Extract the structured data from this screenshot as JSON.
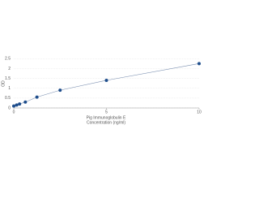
{
  "chart_data": {
    "type": "scatter",
    "x_label": "Pig Immunoglobulin E",
    "x_label_2": "Concentration (ng/ml)",
    "y_label": "OD",
    "x": [
      0,
      0.156,
      0.312,
      0.625,
      1.25,
      2.5,
      5,
      10
    ],
    "series": [
      {
        "name": "OD",
        "color": "#1f4e8c",
        "values": [
          0.1,
          0.15,
          0.2,
          0.3,
          0.55,
          0.9,
          1.4,
          2.25
        ]
      }
    ],
    "line_color": "#7a8fb0",
    "xlim": [
      0,
      10
    ],
    "xticks": [
      0,
      5,
      10
    ],
    "ylim": [
      0,
      2.8
    ],
    "yticks": [
      0,
      0.5,
      1,
      1.5,
      2,
      2.5
    ],
    "grid": true
  }
}
